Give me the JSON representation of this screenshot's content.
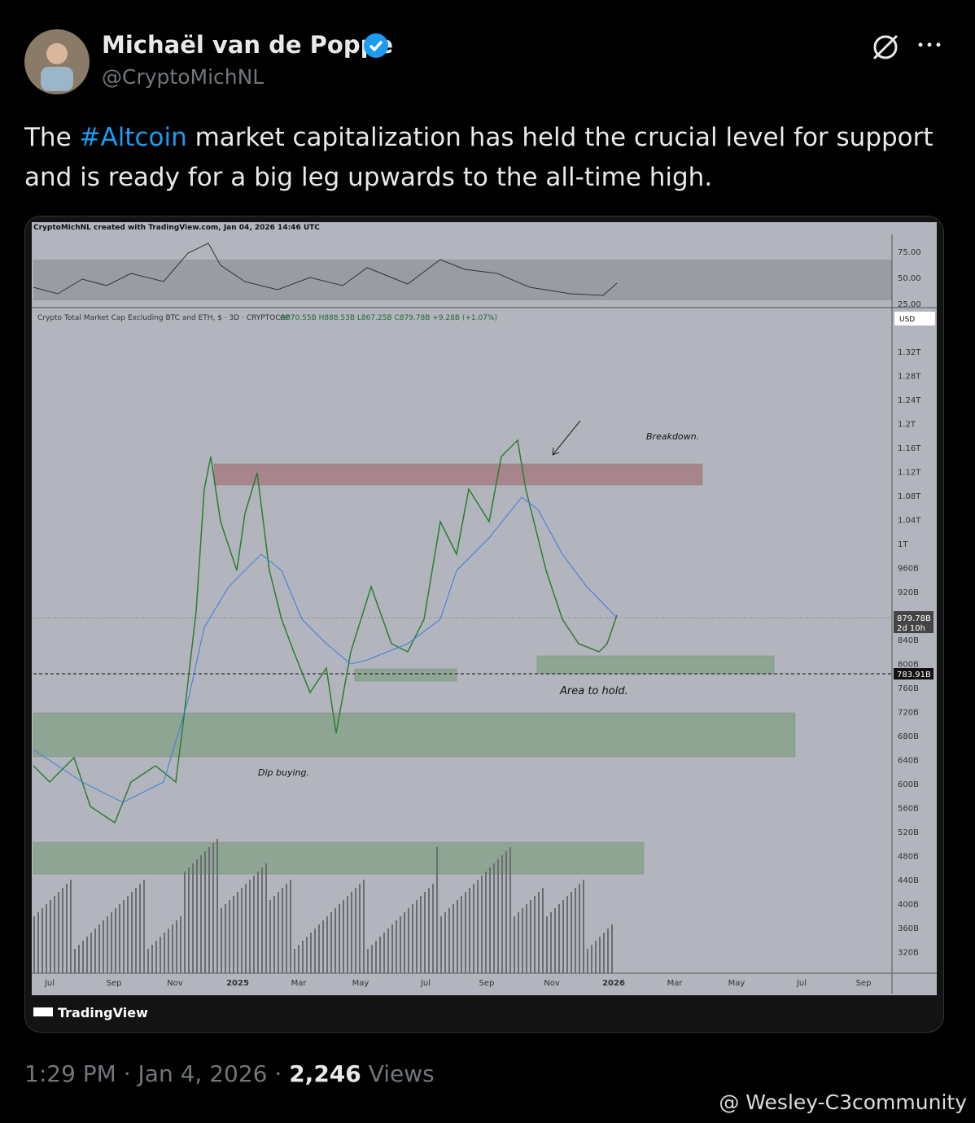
{
  "header": {
    "name": "Michaël van de Poppe",
    "handle": "@CryptoMichNL"
  },
  "tweet": {
    "text_before": "The ",
    "hashtag": "#Altcoin",
    "text_after": " market capitalization has held the crucial level for support and is ready for a big leg upwards to the all-time high."
  },
  "chart": {
    "created": "CryptoMichNL created with TradingView.com, Jan 04, 2026 14:46 UTC",
    "legend_title": "Crypto Total Market Cap Excluding BTC and ETH, $ · 3D · CRYPTOCAP",
    "ohlc": "O870.55B H888.53B L867.25B C879.78B +9.28B (+1.07%)",
    "rsi_ticks": [
      "75.00",
      "50.00",
      "25.00"
    ],
    "currency": "USD",
    "price_ticks": [
      "1.32T",
      "1.28T",
      "1.24T",
      "1.2T",
      "1.16T",
      "1.12T",
      "1.08T",
      "1.04T",
      "1T",
      "960B",
      "920B",
      "840B",
      "800B",
      "760B",
      "720B",
      "680B",
      "640B",
      "600B",
      "560B",
      "520B",
      "480B",
      "440B",
      "400B",
      "360B",
      "320B"
    ],
    "last_price": "879.78B",
    "countdown": "2d 10h",
    "support_price": "783.91B",
    "x_labels": [
      "Jul",
      "Sep",
      "Nov",
      "2025",
      "Mar",
      "May",
      "Jul",
      "Sep",
      "Nov",
      "2026",
      "Mar",
      "May",
      "Jul",
      "Sep"
    ],
    "annotations": {
      "breakdown": "Breakdown.",
      "area": "Area to hold.",
      "dip": "Dip buying."
    },
    "brand": "TradingView"
  },
  "footer": {
    "time": "1:29 PM",
    "separator": "·",
    "date": "Jan 4, 2026",
    "views_count": "2,246",
    "views_label": "Views"
  },
  "watermark": "@ Wesley-C3community"
}
